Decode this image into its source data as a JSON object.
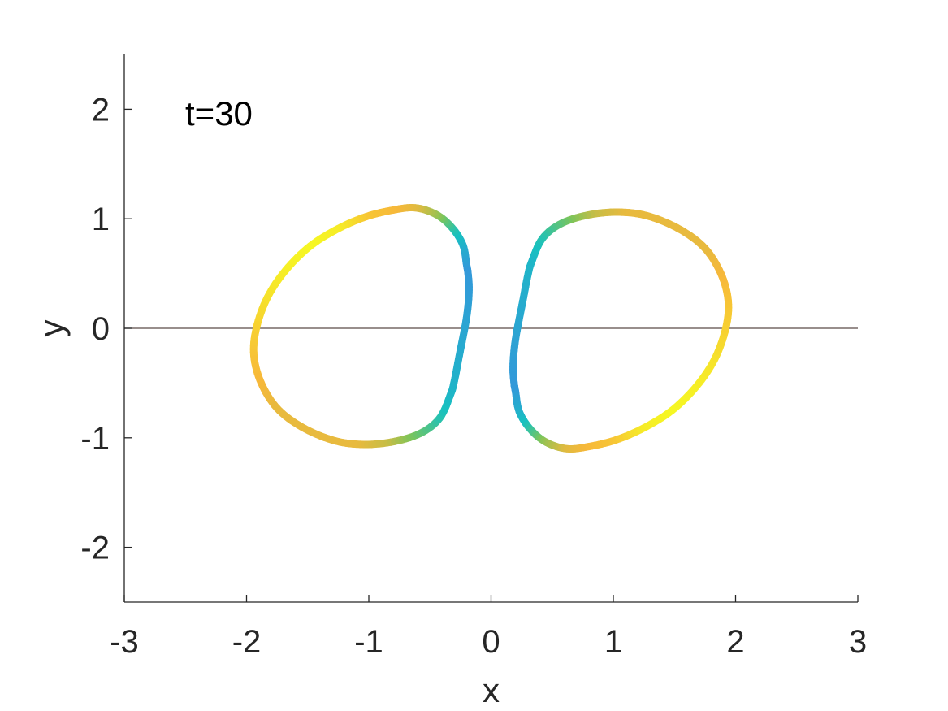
{
  "chart_data": {
    "type": "line",
    "title": "",
    "annotation": "t=30",
    "xlabel": "x",
    "ylabel": "y",
    "xlim": [
      -3,
      3
    ],
    "ylim": [
      -2.5,
      2.5
    ],
    "xticks": [
      -3,
      -2,
      -1,
      0,
      1,
      2,
      3
    ],
    "yticks": [
      -2,
      -1,
      0,
      1,
      2
    ],
    "grid": false,
    "reference_line": {
      "y": 0,
      "color": "#5a4a48"
    },
    "colormap": [
      "#3a8fe0",
      "#17c1c0",
      "#7cc55a",
      "#f7b83a",
      "#f6f723"
    ],
    "series": [
      {
        "points": [
          [
            -0.19,
            0.52
          ],
          [
            -0.2,
            0.58
          ],
          [
            -0.23,
            0.76
          ],
          [
            -0.32,
            0.92
          ],
          [
            -0.45,
            1.04
          ],
          [
            -0.62,
            1.1
          ],
          [
            -0.8,
            1.08
          ],
          [
            -1.02,
            1.02
          ],
          [
            -1.25,
            0.91
          ],
          [
            -1.48,
            0.75
          ],
          [
            -1.68,
            0.53
          ],
          [
            -1.83,
            0.28
          ],
          [
            -1.92,
            0.0
          ],
          [
            -1.94,
            -0.25
          ],
          [
            -1.88,
            -0.5
          ],
          [
            -1.75,
            -0.73
          ],
          [
            -1.55,
            -0.9
          ],
          [
            -1.3,
            -1.02
          ],
          [
            -1.07,
            -1.06
          ],
          [
            -0.82,
            -1.04
          ],
          [
            -0.58,
            -0.96
          ],
          [
            -0.42,
            -0.82
          ],
          [
            -0.33,
            -0.6
          ],
          [
            -0.3,
            -0.48
          ],
          [
            -0.26,
            -0.25
          ],
          [
            -0.2,
            0.1
          ],
          [
            -0.18,
            0.35
          ],
          [
            -0.19,
            0.52
          ]
        ],
        "values": [
          0.05,
          0.05,
          0.15,
          0.3,
          0.55,
          0.7,
          0.75,
          0.8,
          0.95,
          1.0,
          0.97,
          0.92,
          0.85,
          0.8,
          0.75,
          0.72,
          0.72,
          0.72,
          0.72,
          0.65,
          0.45,
          0.3,
          0.2,
          0.18,
          0.15,
          0.1,
          0.07,
          0.05
        ]
      },
      {
        "points": [
          [
            0.19,
            -0.52
          ],
          [
            0.2,
            -0.58
          ],
          [
            0.23,
            -0.76
          ],
          [
            0.32,
            -0.92
          ],
          [
            0.45,
            -1.04
          ],
          [
            0.62,
            -1.1
          ],
          [
            0.8,
            -1.08
          ],
          [
            1.02,
            -1.02
          ],
          [
            1.25,
            -0.91
          ],
          [
            1.48,
            -0.75
          ],
          [
            1.68,
            -0.53
          ],
          [
            1.83,
            -0.28
          ],
          [
            1.92,
            0.0
          ],
          [
            1.94,
            0.25
          ],
          [
            1.88,
            0.5
          ],
          [
            1.75,
            0.73
          ],
          [
            1.55,
            0.9
          ],
          [
            1.3,
            1.02
          ],
          [
            1.07,
            1.06
          ],
          [
            0.82,
            1.04
          ],
          [
            0.58,
            0.96
          ],
          [
            0.42,
            0.82
          ],
          [
            0.33,
            0.6
          ],
          [
            0.3,
            0.48
          ],
          [
            0.26,
            0.25
          ],
          [
            0.2,
            -0.1
          ],
          [
            0.18,
            -0.35
          ],
          [
            0.19,
            -0.52
          ]
        ],
        "values": [
          0.05,
          0.05,
          0.15,
          0.3,
          0.55,
          0.7,
          0.75,
          0.8,
          0.95,
          1.0,
          0.97,
          0.92,
          0.85,
          0.8,
          0.75,
          0.72,
          0.72,
          0.72,
          0.72,
          0.65,
          0.45,
          0.3,
          0.2,
          0.18,
          0.15,
          0.1,
          0.07,
          0.05
        ]
      }
    ]
  }
}
